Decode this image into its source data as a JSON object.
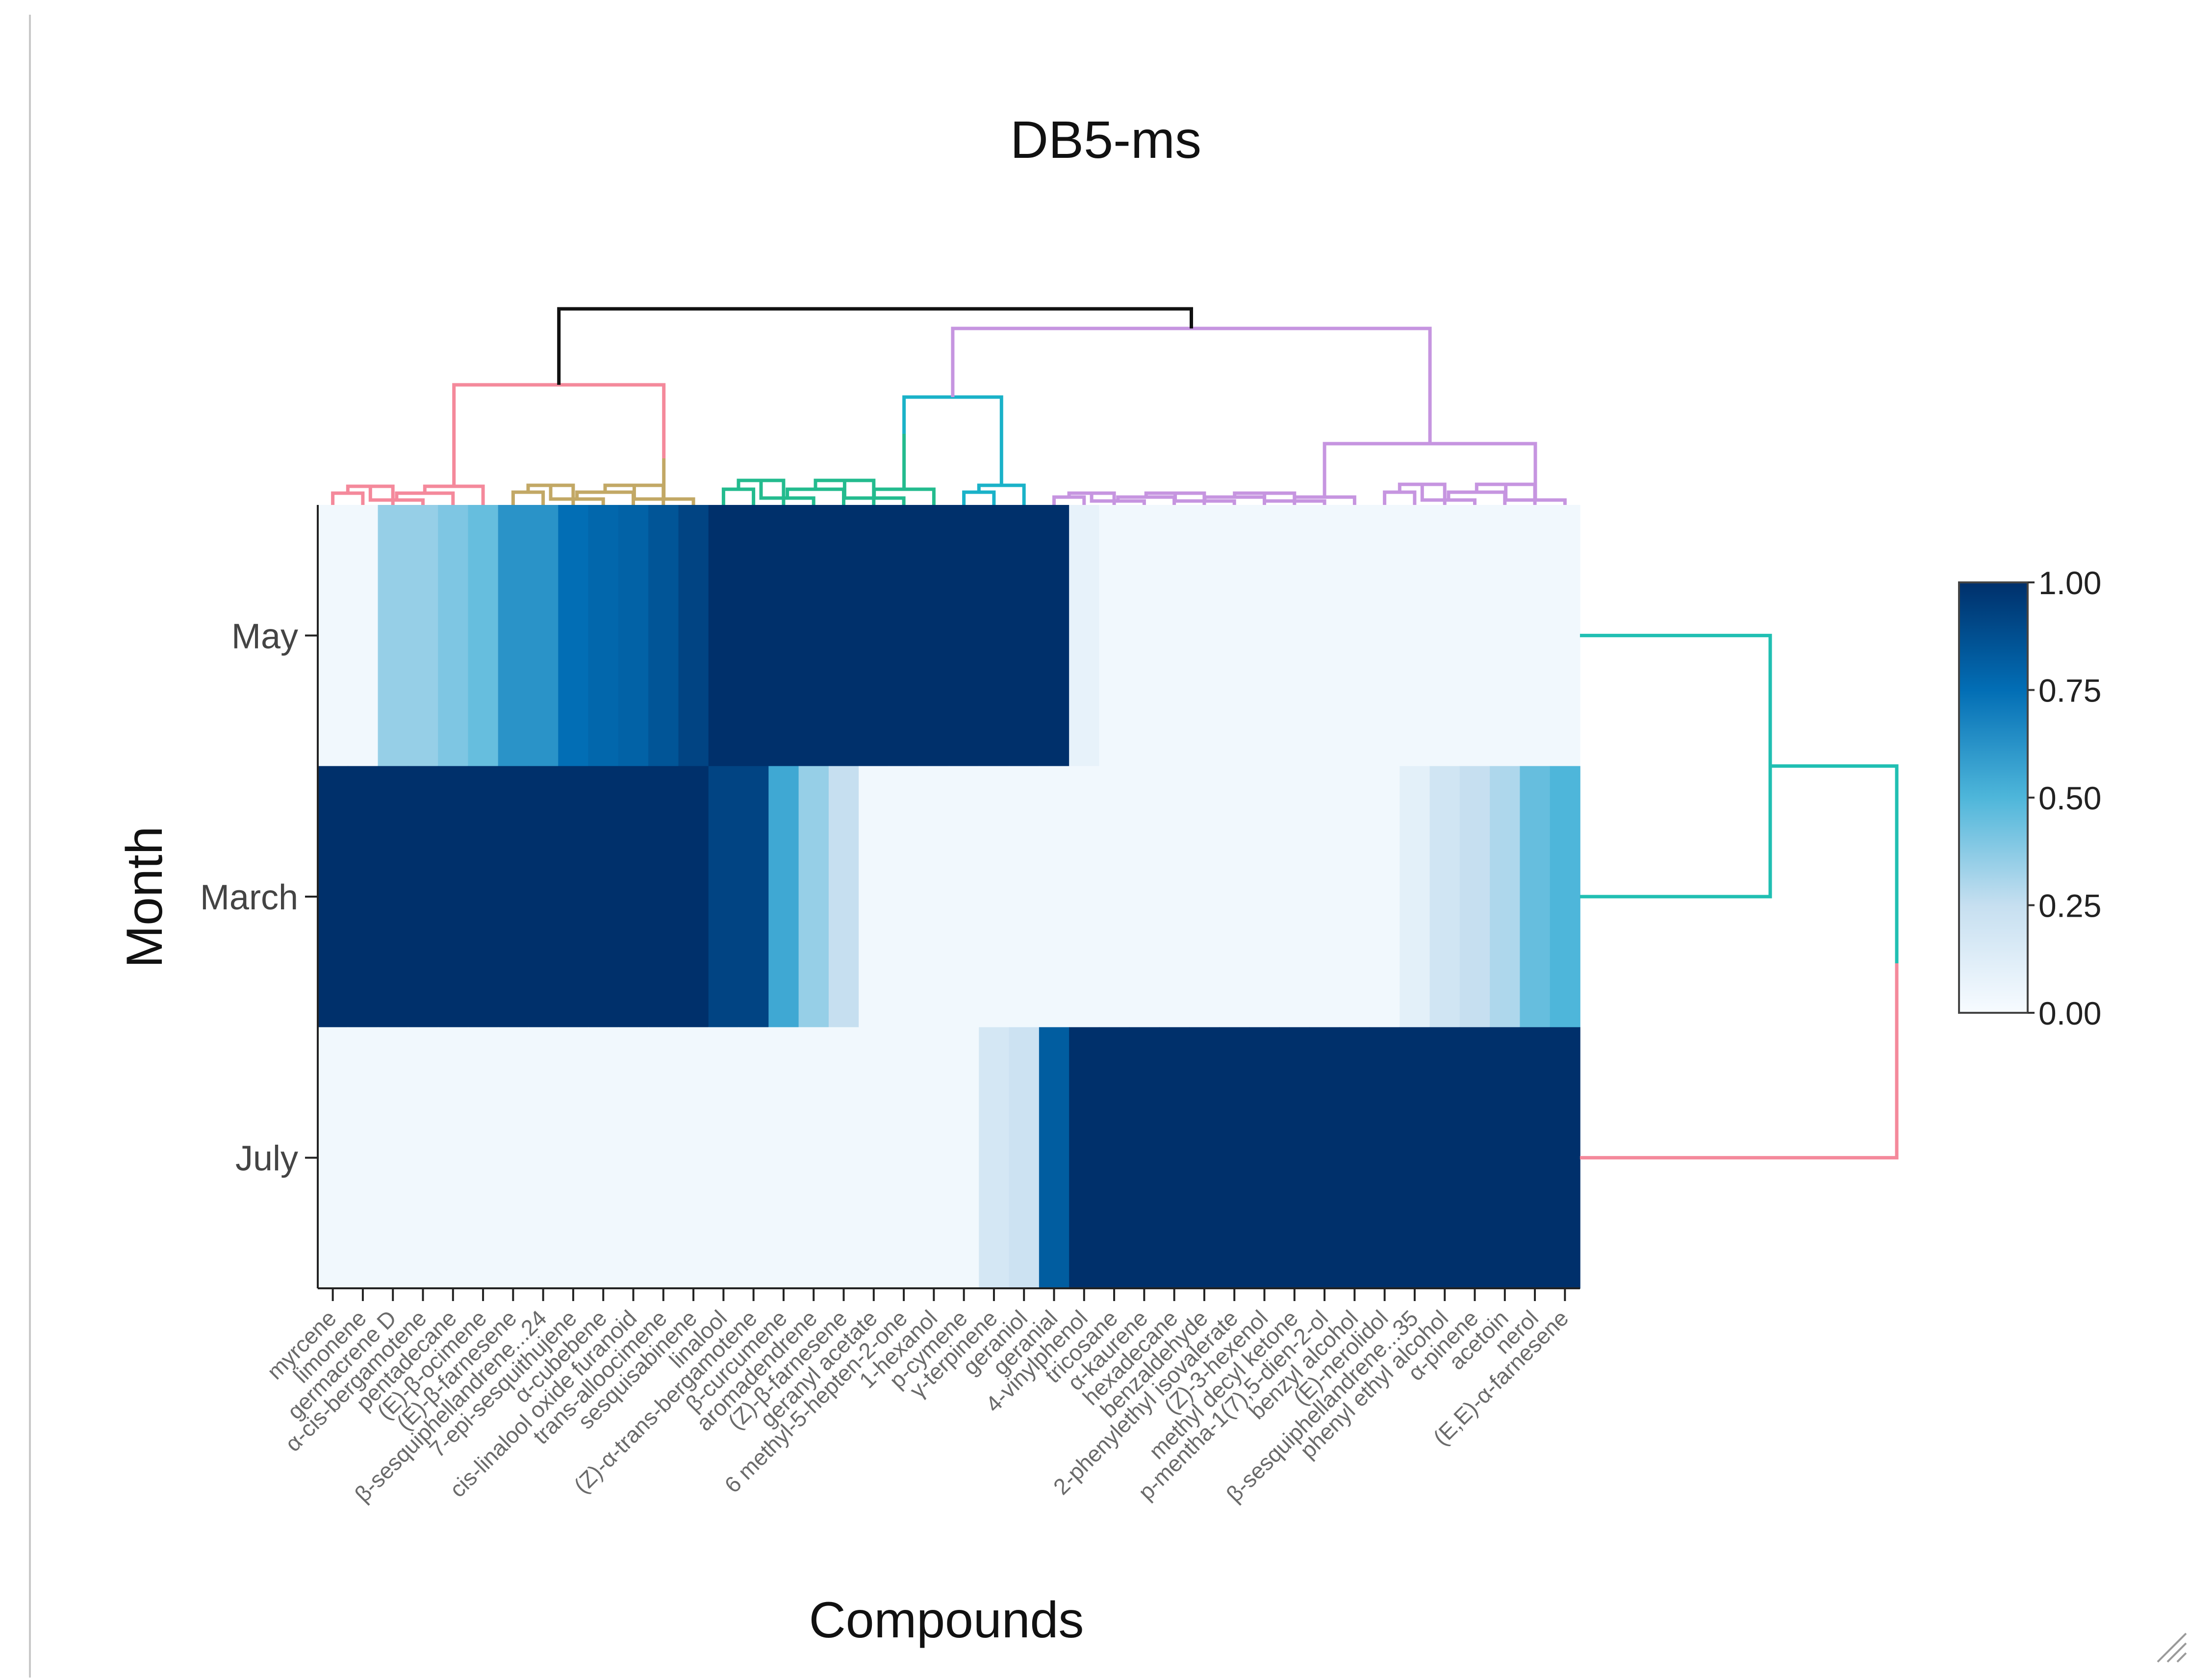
{
  "chart_data": {
    "type": "heatmap",
    "title": "DB5-ms",
    "xlabel": "Compounds",
    "ylabel": "Month",
    "rows": [
      "May",
      "March",
      "July"
    ],
    "columns": [
      "myrcene",
      "limonene",
      "germacrene D",
      "α-cis-bergamotene",
      "pentadecane",
      "(E)-β-ocimene",
      "(E)-β-farnesene",
      "β-sesquiphellandrene...24",
      "7-epi-sesquithujene",
      "α-cubebene",
      "cis-linalool oxide furanoid",
      "trans-alloocimene",
      "sesquisabinene",
      "linalool",
      "(Z)-α-trans-bergamotene",
      "β-curcumene",
      "aromadendrene",
      "(Z)-β-farnesene",
      "geranyl acetate",
      "6 methyl-5-hepten-2-one",
      "1-hexanol",
      "p-cymene",
      "γ-terpinene",
      "geraniol",
      "geranial",
      "4-vinylphenol",
      "tricosane",
      "α-kaurene",
      "hexadecane",
      "benzaldehyde",
      "2-phenylethyl isovalerate",
      "(Z)-3-hexenol",
      "methyl decyl ketone",
      "p-mentha-1(7),5-dien-2-ol",
      "benzyl alcohol",
      "(E)-nerolidol",
      "β-sesquiphellandrene...35",
      "phenyl ethyl alcohol",
      "α-pinene",
      "acetoin",
      "nerol",
      "(E,E)-α-farnesene"
    ],
    "values": [
      [
        0.03,
        0.03,
        0.35,
        0.35,
        0.4,
        0.45,
        0.62,
        0.62,
        0.75,
        0.78,
        0.8,
        0.85,
        0.92,
        1.0,
        1.0,
        1.0,
        1.0,
        1.0,
        1.0,
        1.0,
        1.0,
        1.0,
        1.0,
        1.0,
        1.0,
        0.08,
        0.03,
        0.03,
        0.03,
        0.03,
        0.03,
        0.03,
        0.03,
        0.03,
        0.03,
        0.03,
        0.03,
        0.03,
        0.03,
        0.03,
        0.03,
        0.03
      ],
      [
        1.0,
        1.0,
        1.0,
        1.0,
        1.0,
        1.0,
        1.0,
        1.0,
        1.0,
        1.0,
        1.0,
        1.0,
        1.0,
        0.92,
        0.92,
        0.55,
        0.35,
        0.25,
        0.03,
        0.03,
        0.03,
        0.03,
        0.03,
        0.03,
        0.03,
        0.03,
        0.03,
        0.03,
        0.03,
        0.03,
        0.03,
        0.03,
        0.03,
        0.03,
        0.03,
        0.03,
        0.1,
        0.2,
        0.25,
        0.3,
        0.45,
        0.5
      ],
      [
        0.03,
        0.03,
        0.03,
        0.03,
        0.03,
        0.03,
        0.03,
        0.03,
        0.03,
        0.03,
        0.03,
        0.03,
        0.03,
        0.03,
        0.03,
        0.03,
        0.03,
        0.03,
        0.03,
        0.03,
        0.03,
        0.03,
        0.18,
        0.22,
        0.82,
        1.0,
        1.0,
        1.0,
        1.0,
        1.0,
        1.0,
        1.0,
        1.0,
        1.0,
        1.0,
        1.0,
        1.0,
        1.0,
        1.0,
        1.0,
        1.0,
        1.0
      ]
    ],
    "colorbar": {
      "min": 0,
      "max": 1,
      "ticks": [
        "0.00",
        "0.25",
        "0.50",
        "0.75",
        "1.00"
      ],
      "scale": "Blues"
    },
    "column_dendrogram": "clusters: pink, gold, green, cyan, purple",
    "row_dendrogram": "clusters: cyan (May, March), pink (July)"
  },
  "colors": {
    "low": "#f7fbff",
    "high": "#00306b",
    "dendro_pink": "#f4899b",
    "dendro_gold": "#c2a865",
    "dendro_green": "#23bb8e",
    "dendro_cyan": "#1ab2c8",
    "dendro_purple": "#c695e0",
    "dendro_root": "#111111",
    "row_cyan": "#20bfb2"
  }
}
